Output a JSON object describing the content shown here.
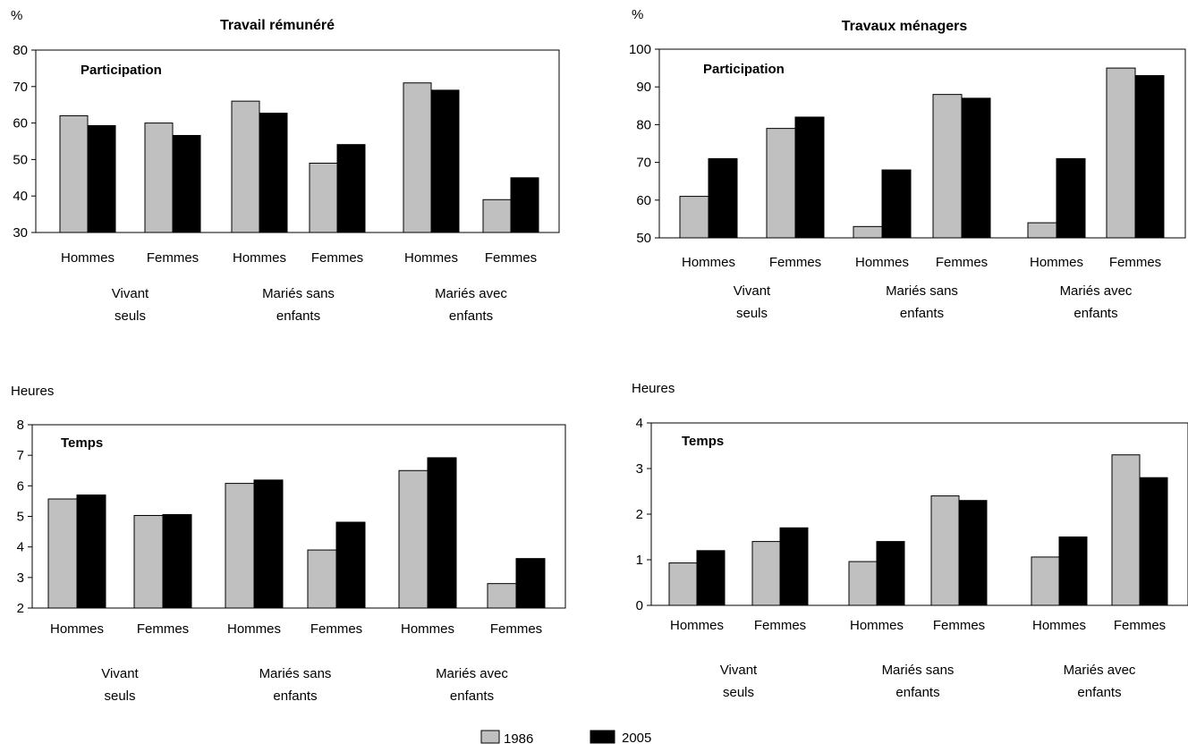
{
  "colors": {
    "series_1986": "#c0c0c0",
    "series_2005": "#000000",
    "frame": "#000000"
  },
  "legend": [
    {
      "label": "1986"
    },
    {
      "label": "2005"
    }
  ],
  "chart_data": [
    {
      "type": "bar",
      "title": "Travail rémunéré",
      "subtitle": "Participation",
      "ylabel": "%",
      "ylim": [
        30,
        80
      ],
      "yticks": [
        "30",
        "40",
        "50",
        "60",
        "70",
        "80"
      ],
      "categories": [
        "Hommes",
        "Femmes",
        "Hommes",
        "Femmes",
        "Hommes",
        "Femmes"
      ],
      "groups": [
        "Vivant seuls",
        "Mariés sans enfants",
        "Mariés avec enfants"
      ],
      "series": [
        {
          "name": "1986",
          "values": [
            62,
            60,
            66,
            49,
            71,
            39
          ]
        },
        {
          "name": "2005",
          "values": [
            59.3,
            56.6,
            62.7,
            54.1,
            69,
            45
          ]
        }
      ]
    },
    {
      "type": "bar",
      "title": "Travaux ménagers",
      "subtitle": "Participation",
      "ylabel": "%",
      "ylim": [
        50,
        100
      ],
      "yticks": [
        "50",
        "60",
        "70",
        "80",
        "90",
        "100"
      ],
      "categories": [
        "Hommes",
        "Femmes",
        "Hommes",
        "Femmes",
        "Hommes",
        "Femmes"
      ],
      "groups": [
        "Vivant seuls",
        "Mariés sans enfants",
        "Mariés avec enfants"
      ],
      "series": [
        {
          "name": "1986",
          "values": [
            61,
            79,
            53,
            88,
            54,
            95
          ]
        },
        {
          "name": "2005",
          "values": [
            71,
            82,
            68,
            87,
            71,
            93
          ]
        }
      ]
    },
    {
      "type": "bar",
      "title": "",
      "subtitle": "Temps",
      "ylabel": "Heures",
      "ylim": [
        2,
        8
      ],
      "yticks": [
        "2",
        "3",
        "4",
        "5",
        "6",
        "7",
        "8"
      ],
      "categories": [
        "Hommes",
        "Femmes",
        "Hommes",
        "Femmes",
        "Hommes",
        "Femmes"
      ],
      "groups": [
        "Vivant seuls",
        "Mariés sans enfants",
        "Mariés avec enfants"
      ],
      "series": [
        {
          "name": "1986",
          "values": [
            5.57,
            5.03,
            6.08,
            3.9,
            6.5,
            2.8
          ]
        },
        {
          "name": "2005",
          "values": [
            5.7,
            5.06,
            6.19,
            4.81,
            6.92,
            3.62
          ]
        }
      ]
    },
    {
      "type": "bar",
      "title": "",
      "subtitle": "Temps",
      "ylabel": "Heures",
      "ylim": [
        0,
        4
      ],
      "yticks": [
        "0",
        "1",
        "2",
        "3",
        "4"
      ],
      "categories": [
        "Hommes",
        "Femmes",
        "Hommes",
        "Femmes",
        "Hommes",
        "Femmes"
      ],
      "groups": [
        "Vivant seuls",
        "Mariés sans enfants",
        "Mariés avec enfants"
      ],
      "series": [
        {
          "name": "1986",
          "values": [
            0.93,
            1.4,
            0.96,
            2.4,
            1.06,
            3.3
          ]
        },
        {
          "name": "2005",
          "values": [
            1.2,
            1.7,
            1.4,
            2.3,
            1.5,
            2.8
          ]
        }
      ]
    }
  ]
}
